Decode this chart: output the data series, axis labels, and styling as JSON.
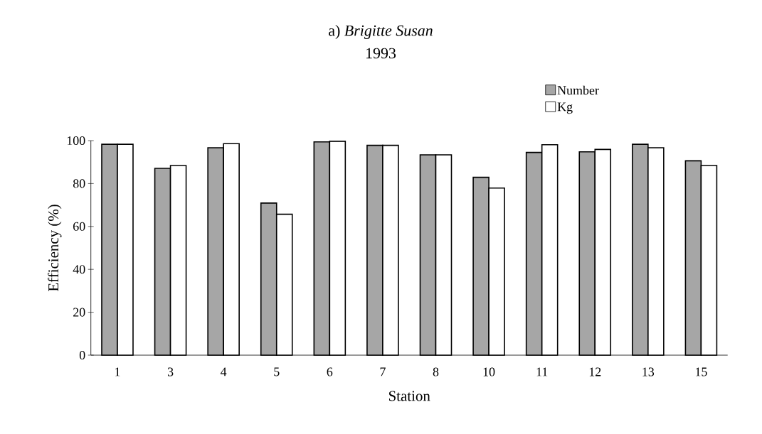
{
  "chart_data": {
    "type": "bar",
    "title": "a) *Brigitte Susan*",
    "subtitle": "1993",
    "xlabel": "Station",
    "ylabel": "Efficiency (%)",
    "categories": [
      "1",
      "3",
      "4",
      "5",
      "6",
      "7",
      "8",
      "10",
      "11",
      "12",
      "13",
      "15"
    ],
    "series": [
      {
        "name": "Number",
        "color": "#a6a6a6",
        "values": [
          98.3,
          87.1,
          96.7,
          70.9,
          99.4,
          97.8,
          93.4,
          82.9,
          94.5,
          94.8,
          98.3,
          90.6
        ]
      },
      {
        "name": "Kg",
        "color": "#ffffff",
        "values": [
          98.3,
          88.4,
          98.6,
          65.7,
          99.7,
          97.8,
          93.4,
          77.9,
          98.1,
          95.9,
          96.7,
          88.4
        ]
      }
    ],
    "ylim": [
      0,
      100
    ],
    "yticks": [
      0,
      20,
      40,
      60,
      80,
      100
    ],
    "grid": false,
    "legend": "top right"
  }
}
